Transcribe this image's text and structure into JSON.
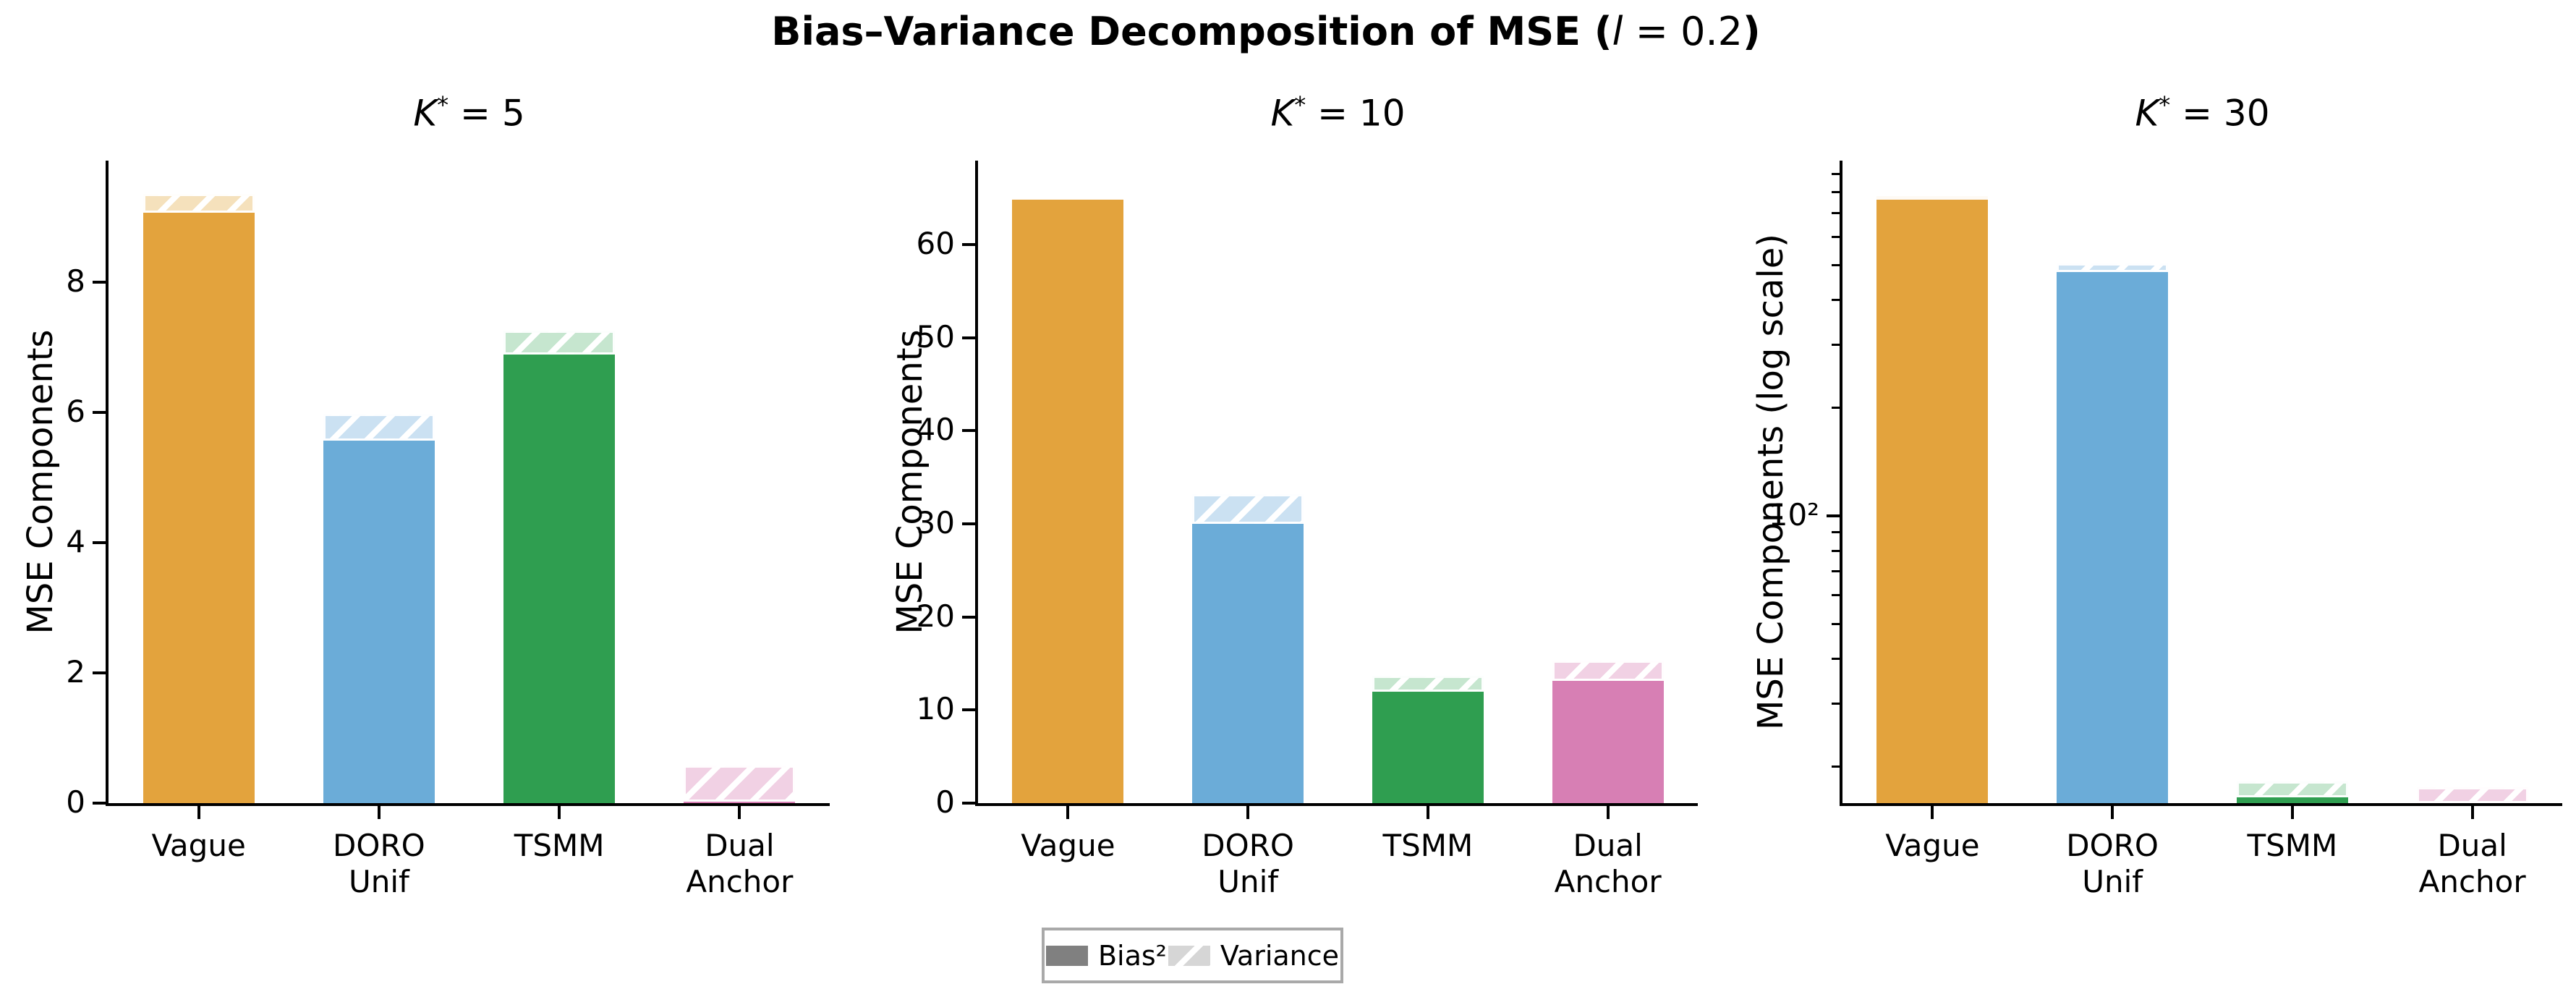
{
  "figure": {
    "title": {
      "bold_pre": "Bias–Variance Decomposition of MSE (",
      "italic_var": "l",
      "normal_mid": " = 0.2",
      "bold_post": ")"
    }
  },
  "palette": {
    "solid": [
      "#E3A33D",
      "#6BACD8",
      "#2F9E50",
      "#D77FB4"
    ],
    "light": [
      "#F5E1BC",
      "#CBE1F2",
      "#C6E6CF",
      "#F1D1E4"
    ],
    "legend_solid": "#808080",
    "legend_hatch_bg": "#D6D6D6",
    "axis_color": "#000000"
  },
  "legend": {
    "items": [
      {
        "label": "Bias²",
        "swatch": "solid"
      },
      {
        "label": "Variance",
        "swatch": "hatch"
      }
    ]
  },
  "chart_data": [
    {
      "type": "bar",
      "title": {
        "var": "K",
        "sup": "*",
        "eq": " = ",
        "val": "5"
      },
      "ylabel": "MSE Components",
      "scale": "linear",
      "ylim": [
        0,
        9.87
      ],
      "yticks": [
        {
          "v": 0,
          "label": "0"
        },
        {
          "v": 2,
          "label": "2"
        },
        {
          "v": 4,
          "label": "4"
        },
        {
          "v": 6,
          "label": "6"
        },
        {
          "v": 8,
          "label": "8"
        }
      ],
      "minor_yticks": [],
      "categories": [
        "Vague",
        "DORO Unif",
        "TSMM",
        "Dual Anchor"
      ],
      "xtick_lines": [
        [
          "Vague"
        ],
        [
          "DORO",
          "Unif"
        ],
        [
          "TSMM"
        ],
        [
          "Dual",
          "Anchor"
        ]
      ],
      "series": [
        {
          "name": "Bias²",
          "values": [
            9.07,
            5.57,
            6.89,
            0.02
          ]
        },
        {
          "name": "Variance",
          "values": [
            0.29,
            0.41,
            0.37,
            0.56
          ]
        }
      ]
    },
    {
      "type": "bar",
      "title": {
        "var": "K",
        "sup": "*",
        "eq": " = ",
        "val": "10"
      },
      "ylabel": "MSE Components",
      "scale": "linear",
      "ylim": [
        0,
        69.0
      ],
      "yticks": [
        {
          "v": 0,
          "label": "0"
        },
        {
          "v": 10,
          "label": "10"
        },
        {
          "v": 20,
          "label": "20"
        },
        {
          "v": 30,
          "label": "30"
        },
        {
          "v": 40,
          "label": "40"
        },
        {
          "v": 50,
          "label": "50"
        },
        {
          "v": 60,
          "label": "60"
        }
      ],
      "minor_yticks": [],
      "categories": [
        "Vague",
        "DORO Unif",
        "TSMM",
        "Dual Anchor"
      ],
      "xtick_lines": [
        [
          "Vague"
        ],
        [
          "DORO",
          "Unif"
        ],
        [
          "TSMM"
        ],
        [
          "Dual",
          "Anchor"
        ]
      ],
      "series": [
        {
          "name": "Bias²",
          "values": [
            64.9,
            30.0,
            12.0,
            13.1
          ]
        },
        {
          "name": "Variance",
          "values": [
            0.4,
            3.2,
            1.7,
            2.2
          ]
        }
      ]
    },
    {
      "type": "bar",
      "title": {
        "var": "K",
        "sup": "*",
        "eq": " = ",
        "val": "30"
      },
      "ylabel": "MSE Components (log scale)",
      "scale": "log",
      "ylim": [
        15.8,
        980
      ],
      "yticks": [
        {
          "v": 100,
          "label": "10²"
        }
      ],
      "minor_yticks": [
        20,
        30,
        40,
        50,
        60,
        70,
        80,
        90,
        200,
        300,
        400,
        500,
        600,
        700,
        800,
        900
      ],
      "categories": [
        "Vague",
        "DORO Unif",
        "TSMM",
        "Dual Anchor"
      ],
      "xtick_lines": [
        [
          "Vague"
        ],
        [
          "DORO",
          "Unif"
        ],
        [
          "TSMM"
        ],
        [
          "Dual",
          "Anchor"
        ]
      ],
      "series": [
        {
          "name": "Bias²",
          "values": [
            780,
            480,
            16.4,
            14.0
          ]
        },
        {
          "name": "Variance",
          "values": [
            5,
            27,
            1.8,
            3.5
          ]
        }
      ]
    }
  ]
}
